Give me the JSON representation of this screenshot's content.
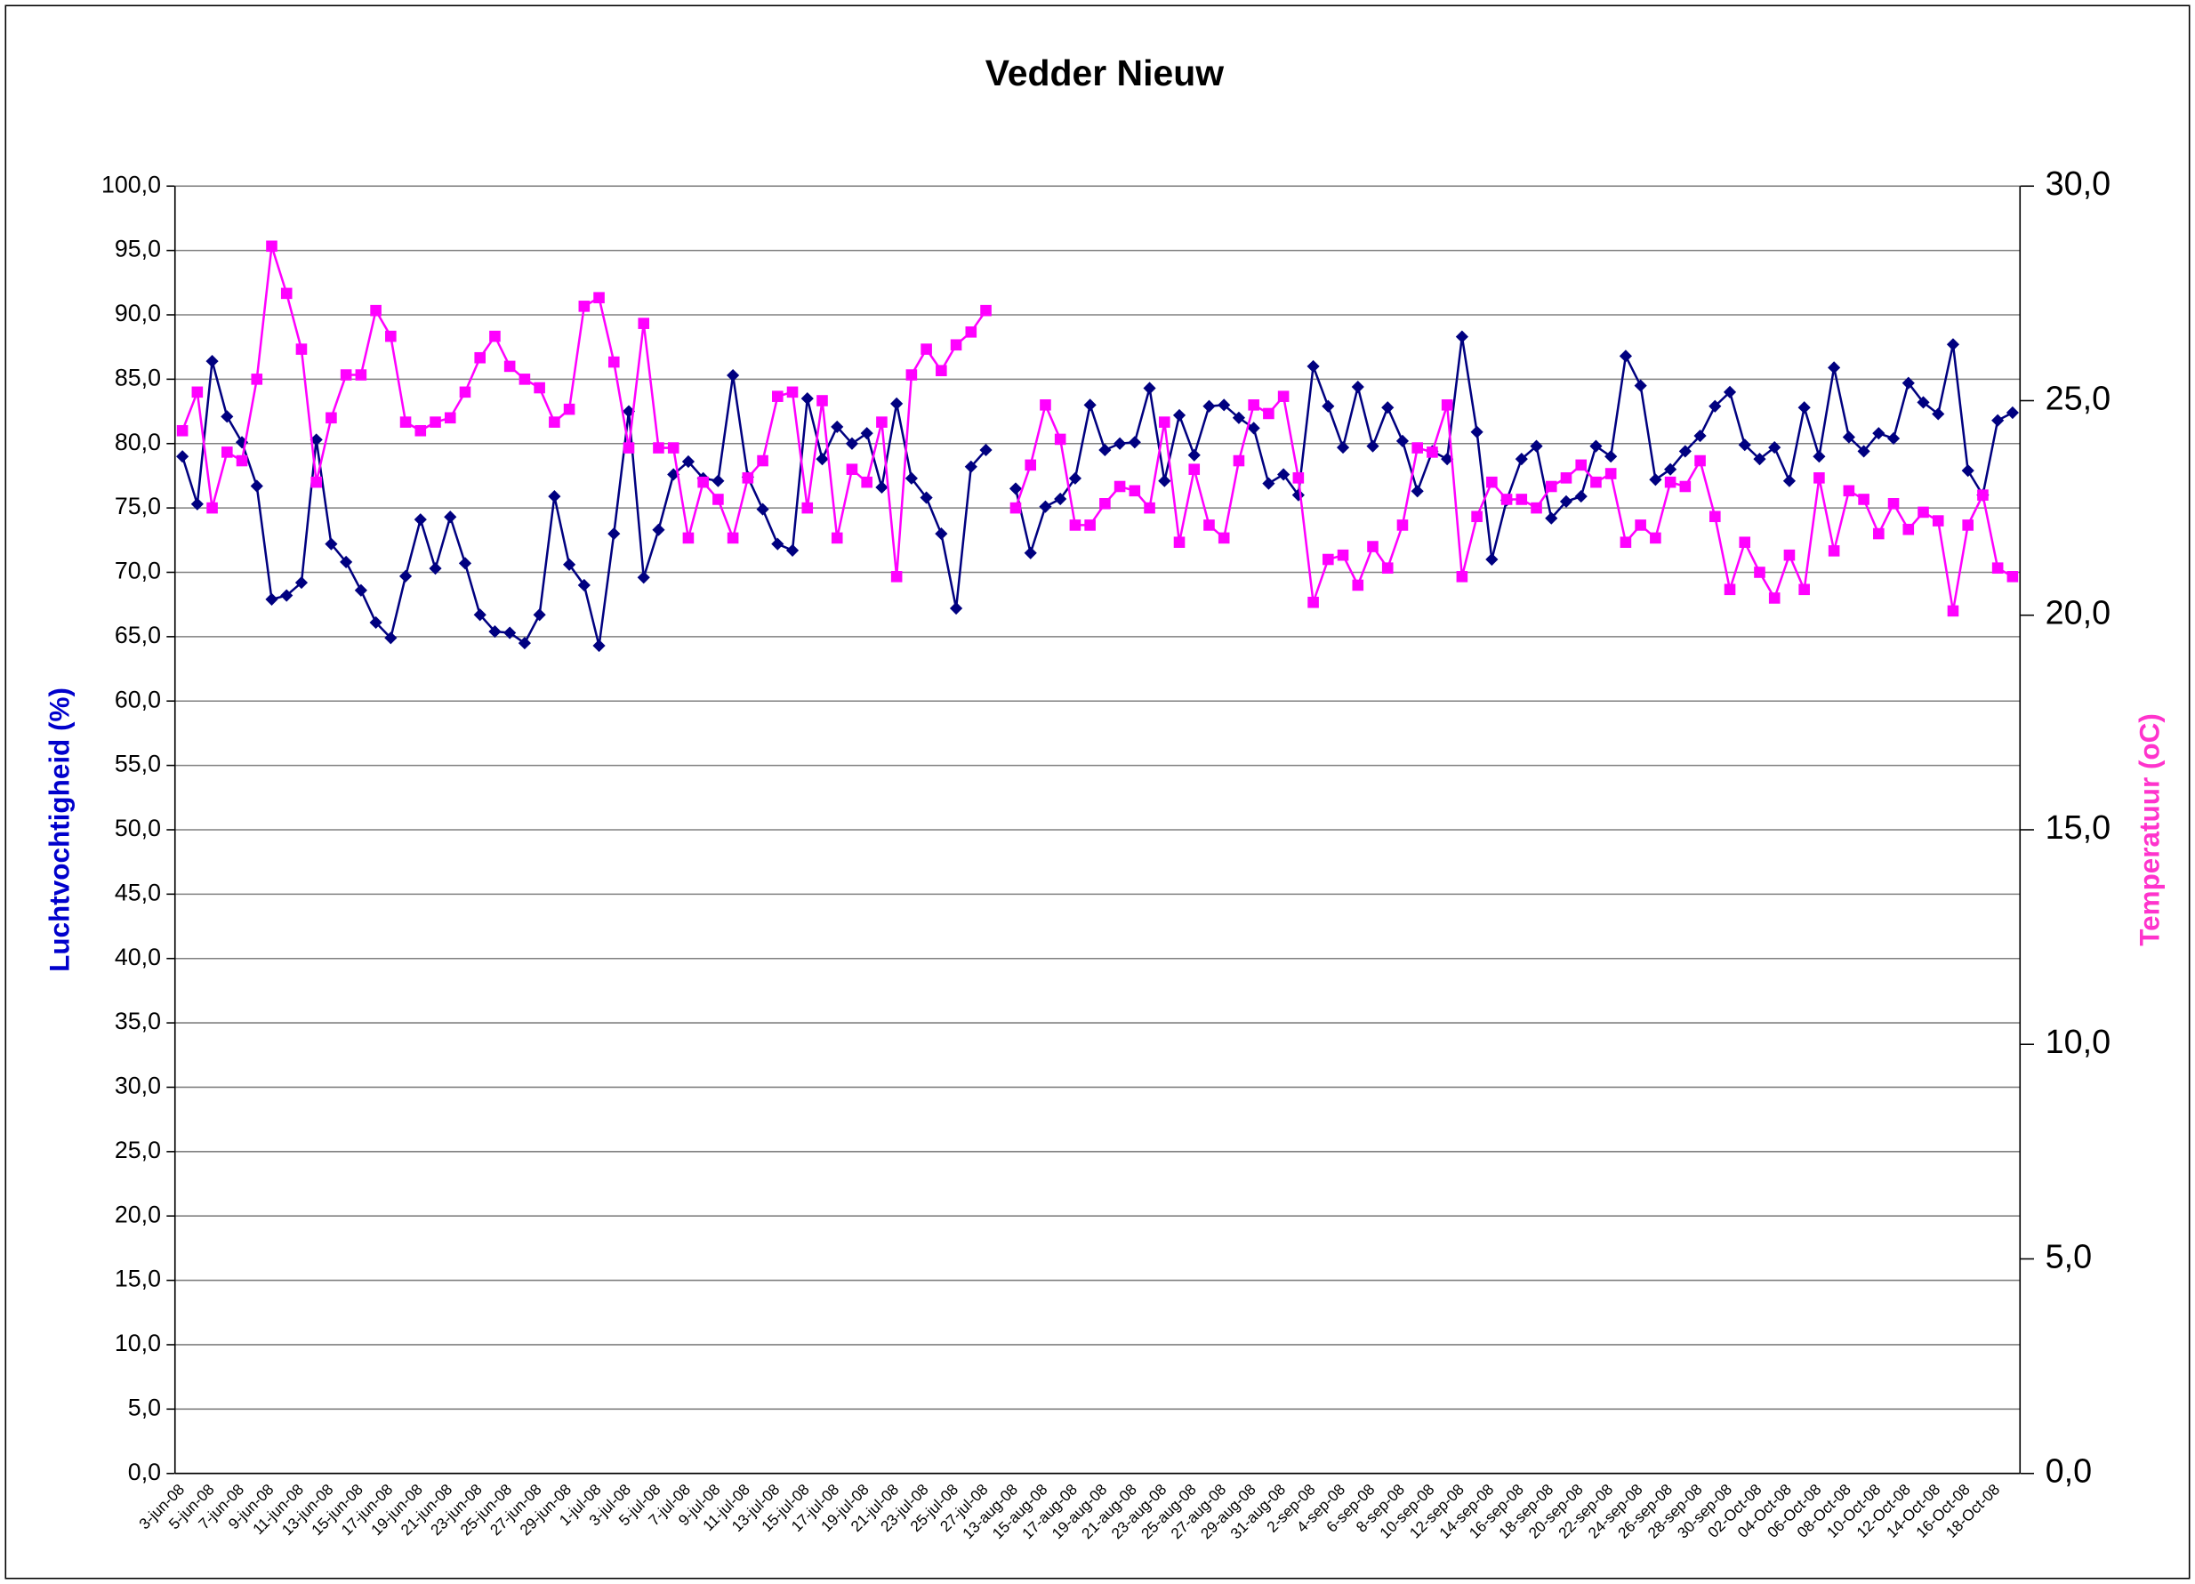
{
  "chart_data": {
    "type": "line",
    "title": "Vedder Nieuw",
    "y_label": "Luchtvochtigheid (%)",
    "y2_label": "Temperatuur (oC)",
    "y_label_color": "#0000cc",
    "y2_label_color": "#ff33cc",
    "categories": [
      "3-jun-08",
      null,
      "5-jun-08",
      null,
      "7-jun-08",
      null,
      "9-jun-08",
      null,
      "11-jun-08",
      null,
      "13-jun-08",
      null,
      "15-jun-08",
      null,
      "17-jun-08",
      null,
      "19-jun-08",
      null,
      "21-jun-08",
      null,
      "23-jun-08",
      null,
      "25-jun-08",
      null,
      "27-jun-08",
      null,
      "29-jun-08",
      null,
      "1-jul-08",
      null,
      "3-jul-08",
      null,
      "5-jul-08",
      null,
      "7-jul-08",
      null,
      "9-jul-08",
      null,
      "11-jul-08",
      null,
      "13-jul-08",
      null,
      "15-jul-08",
      null,
      "17-jul-08",
      null,
      "19-jul-08",
      null,
      "21-jul-08",
      null,
      "23-jul-08",
      null,
      "25-jul-08",
      null,
      "27-jul-08",
      null,
      "13-aug-08",
      null,
      "15-aug-08",
      null,
      "17-aug-08",
      null,
      "19-aug-08",
      null,
      "21-aug-08",
      null,
      "23-aug-08",
      null,
      "25-aug-08",
      null,
      "27-aug-08",
      null,
      "29-aug-08",
      null,
      "31-aug-08",
      null,
      "2-sep-08",
      null,
      "4-sep-08",
      null,
      "6-sep-08",
      null,
      "8-sep-08",
      null,
      "10-sep-08",
      null,
      "12-sep-08",
      null,
      "14-sep-08",
      null,
      "16-sep-08",
      null,
      "18-sep-08",
      null,
      "20-sep-08",
      null,
      "22-sep-08",
      null,
      "24-sep-08",
      null,
      "26-sep-08",
      null,
      "28-sep-08",
      null,
      "30-sep-08",
      null,
      "02-Oct-08",
      null,
      "04-Oct-08",
      null,
      "06-Oct-08",
      null,
      "08-Oct-08",
      null,
      "10-Oct-08",
      null,
      "12-Oct-08",
      null,
      "14-Oct-08",
      null,
      "16-Oct-08",
      null,
      "18-Oct-08",
      null
    ],
    "series": [
      {
        "name": "Luchtvochtigheid",
        "color": "#000080",
        "marker": "diamond",
        "axis": "y",
        "values": [
          79.0,
          75.3,
          86.4,
          82.1,
          80.1,
          76.7,
          67.9,
          68.2,
          69.2,
          80.3,
          72.2,
          70.8,
          68.6,
          66.1,
          64.9,
          69.7,
          74.1,
          70.3,
          74.3,
          70.7,
          66.7,
          65.4,
          65.3,
          64.5,
          66.7,
          75.9,
          70.6,
          69.0,
          64.3,
          73.0,
          82.5,
          69.6,
          73.3,
          77.6,
          78.6,
          77.3,
          77.1,
          85.3,
          77.4,
          74.9,
          72.2,
          71.7,
          83.5,
          78.8,
          81.3,
          80.0,
          80.8,
          76.6,
          83.1,
          77.3,
          75.8,
          73.0,
          67.2,
          78.2,
          79.5,
          null,
          76.5,
          71.5,
          75.1,
          75.7,
          77.3,
          83.0,
          79.5,
          80.0,
          80.1,
          84.3,
          77.1,
          82.2,
          79.1,
          82.9,
          83.0,
          82.0,
          81.2,
          76.9,
          77.6,
          76.0,
          86.0,
          82.9,
          79.7,
          84.4,
          79.8,
          82.8,
          80.2,
          76.3,
          79.4,
          78.8,
          88.3,
          80.9,
          71.0,
          75.6,
          78.8,
          79.8,
          74.2,
          75.5,
          75.9,
          79.8,
          79.0,
          86.8,
          84.5,
          77.2,
          78.0,
          79.4,
          80.6,
          82.9,
          84.0,
          79.9,
          78.8,
          79.7,
          77.1,
          82.8,
          79.0,
          85.9,
          80.5,
          79.4,
          80.8,
          80.4,
          84.7,
          83.2,
          82.3,
          87.7,
          77.9,
          76.0,
          81.8,
          82.4
        ]
      },
      {
        "name": "Temperatuur",
        "color": "#ff00ff",
        "marker": "square",
        "axis": "y2",
        "values": [
          24.3,
          25.2,
          22.5,
          23.8,
          23.6,
          25.5,
          28.6,
          27.5,
          26.2,
          23.1,
          24.6,
          25.6,
          25.6,
          27.1,
          26.5,
          24.5,
          24.3,
          24.5,
          24.6,
          25.2,
          26.0,
          26.5,
          25.8,
          25.5,
          25.3,
          24.5,
          24.8,
          27.2,
          27.4,
          25.9,
          23.9,
          26.8,
          23.9,
          23.9,
          21.8,
          23.1,
          22.7,
          21.8,
          23.2,
          23.6,
          25.1,
          25.2,
          22.5,
          25.0,
          21.8,
          23.4,
          23.1,
          24.5,
          20.9,
          25.6,
          26.2,
          25.7,
          26.3,
          26.6,
          27.1,
          null,
          22.5,
          23.5,
          24.9,
          24.1,
          22.1,
          22.1,
          22.6,
          23.0,
          22.9,
          22.5,
          24.5,
          21.7,
          23.4,
          22.1,
          21.8,
          23.6,
          24.9,
          24.7,
          25.1,
          23.2,
          20.3,
          21.3,
          21.4,
          20.7,
          21.6,
          21.1,
          22.1,
          23.9,
          23.8,
          24.9,
          20.9,
          22.3,
          23.1,
          22.7,
          22.7,
          22.5,
          23.0,
          23.2,
          23.5,
          23.1,
          23.3,
          21.7,
          22.1,
          21.8,
          23.1,
          23.0,
          23.6,
          22.3,
          20.6,
          21.7,
          21.0,
          20.4,
          21.4,
          20.6,
          23.2,
          21.5,
          22.9,
          22.7,
          21.9,
          22.6,
          22.0,
          22.4,
          22.2,
          20.1,
          22.1,
          22.8,
          21.1,
          20.9
        ]
      }
    ],
    "ylim": [
      0,
      100
    ],
    "yticks": [
      {
        "value": 0,
        "label": "0,0"
      },
      {
        "value": 5,
        "label": "5,0"
      },
      {
        "value": 10,
        "label": "10,0"
      },
      {
        "value": 15,
        "label": "15,0"
      },
      {
        "value": 20,
        "label": "20,0"
      },
      {
        "value": 25,
        "label": "25,0"
      },
      {
        "value": 30,
        "label": "30,0"
      },
      {
        "value": 35,
        "label": "35,0"
      },
      {
        "value": 40,
        "label": "40,0"
      },
      {
        "value": 45,
        "label": "45,0"
      },
      {
        "value": 50,
        "label": "50,0"
      },
      {
        "value": 55,
        "label": "55,0"
      },
      {
        "value": 60,
        "label": "60,0"
      },
      {
        "value": 65,
        "label": "65,0"
      },
      {
        "value": 70,
        "label": "70,0"
      },
      {
        "value": 75,
        "label": "75,0"
      },
      {
        "value": 80,
        "label": "80,0"
      },
      {
        "value": 85,
        "label": "85,0"
      },
      {
        "value": 90,
        "label": "90,0"
      },
      {
        "value": 95,
        "label": "95,0"
      },
      {
        "value": 100,
        "label": "100,0"
      }
    ],
    "y2lim": [
      0,
      30
    ],
    "y2ticks": [
      {
        "value": 0,
        "label": "0,0"
      },
      {
        "value": 5,
        "label": "5,0"
      },
      {
        "value": 10,
        "label": "10,0"
      },
      {
        "value": 15,
        "label": "15,0"
      },
      {
        "value": 20,
        "label": "20,0"
      },
      {
        "value": 25,
        "label": "25,0"
      },
      {
        "value": 30,
        "label": "30,0"
      }
    ],
    "grid": true
  }
}
